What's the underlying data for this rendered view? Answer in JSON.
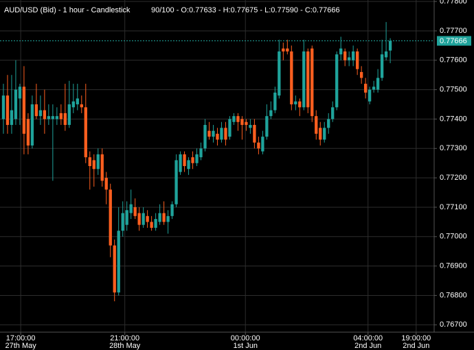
{
  "chart_data": {
    "type": "candlestick",
    "title": "AUD/USD (Bid) - 1 hour - Candlestick",
    "subtitle": "90/100 - O:0.77633 - H:0.77675 - L:0.77590 - C:0.77666",
    "up_color": "#1fa39b",
    "down_color": "#ff5f1f",
    "grid": true,
    "ylim": [
      0.76675,
      0.77805
    ],
    "yticks": [
      {
        "value": 0.778,
        "label": "0.77800"
      },
      {
        "value": 0.777,
        "label": "0.77700"
      },
      {
        "value": 0.776,
        "label": "0.77600"
      },
      {
        "value": 0.775,
        "label": "0.77500"
      },
      {
        "value": 0.774,
        "label": "0.77400"
      },
      {
        "value": 0.773,
        "label": "0.77300"
      },
      {
        "value": 0.772,
        "label": "0.77200"
      },
      {
        "value": 0.771,
        "label": "0.77100"
      },
      {
        "value": 0.77,
        "label": "0.77000"
      },
      {
        "value": 0.769,
        "label": "0.76900"
      },
      {
        "value": 0.768,
        "label": "0.76800"
      },
      {
        "value": 0.767,
        "label": "0.76700"
      }
    ],
    "xlim": [
      -0.83,
      104.67
    ],
    "xticks": [
      {
        "value": 4.2,
        "label": [
          "17:00:00",
          "27th May"
        ]
      },
      {
        "value": 29.5,
        "label": [
          "21:00:00",
          "28th May"
        ]
      },
      {
        "value": 58.8,
        "label": [
          "00:00:00",
          "1st Jun"
        ]
      },
      {
        "value": 88.6,
        "label": [
          "04:00:00",
          "2nd Jun"
        ]
      },
      {
        "value": 100.3,
        "label": [
          "19:00:00",
          "2nd Jun"
        ]
      }
    ],
    "last_price": 0.77666,
    "ohlc": [
      [
        0.774,
        0.7752,
        0.7735,
        0.7748
      ],
      [
        0.7748,
        0.7755,
        0.7735,
        0.7738
      ],
      [
        0.7738,
        0.7755,
        0.7735,
        0.7743
      ],
      [
        0.774,
        0.776,
        0.7738,
        0.775
      ],
      [
        0.7747,
        0.7752,
        0.7738,
        0.7751
      ],
      [
        0.7751,
        0.7758,
        0.7728,
        0.7735
      ],
      [
        0.774,
        0.7742,
        0.7728,
        0.7731
      ],
      [
        0.7731,
        0.7748,
        0.773,
        0.7745
      ],
      [
        0.7745,
        0.7752,
        0.774,
        0.7741
      ],
      [
        0.7741,
        0.7748,
        0.7738,
        0.7743
      ],
      [
        0.7743,
        0.775,
        0.7735,
        0.774
      ],
      [
        0.774,
        0.7745,
        0.7738,
        0.7741
      ],
      [
        0.774,
        0.7745,
        0.7719,
        0.7741
      ],
      [
        0.774,
        0.7744,
        0.7738,
        0.7741
      ],
      [
        0.7742,
        0.7745,
        0.7738,
        0.774
      ],
      [
        0.7742,
        0.7752,
        0.7736,
        0.7738
      ],
      [
        0.7738,
        0.7753,
        0.7737,
        0.7745
      ],
      [
        0.7744,
        0.7752,
        0.7742,
        0.7746
      ],
      [
        0.7745,
        0.7752,
        0.7743,
        0.7747
      ],
      [
        0.7745,
        0.7748,
        0.7742,
        0.7744
      ],
      [
        0.7744,
        0.7752,
        0.7725,
        0.7727
      ],
      [
        0.7727,
        0.7729,
        0.7716,
        0.7724
      ],
      [
        0.7726,
        0.7728,
        0.7717,
        0.7723
      ],
      [
        0.7723,
        0.773,
        0.7721,
        0.7728
      ],
      [
        0.7728,
        0.773,
        0.7717,
        0.7719
      ],
      [
        0.772,
        0.7722,
        0.7711,
        0.7716
      ],
      [
        0.7716,
        0.7718,
        0.7693,
        0.7697
      ],
      [
        0.7697,
        0.7699,
        0.7678,
        0.7681
      ],
      [
        0.7681,
        0.771,
        0.768,
        0.7702
      ],
      [
        0.7702,
        0.7712,
        0.77,
        0.7708
      ],
      [
        0.7704,
        0.7712,
        0.7702,
        0.7709
      ],
      [
        0.7708,
        0.7716,
        0.7706,
        0.7711
      ],
      [
        0.771,
        0.7713,
        0.7706,
        0.7707
      ],
      [
        0.7708,
        0.771,
        0.7702,
        0.7704
      ],
      [
        0.7704,
        0.771,
        0.7703,
        0.7708
      ],
      [
        0.7707,
        0.7709,
        0.7703,
        0.7705
      ],
      [
        0.7705,
        0.7707,
        0.7702,
        0.7703
      ],
      [
        0.7703,
        0.7708,
        0.7702,
        0.7706
      ],
      [
        0.7705,
        0.7711,
        0.7704,
        0.7708
      ],
      [
        0.7708,
        0.7712,
        0.7704,
        0.7705
      ],
      [
        0.7705,
        0.7709,
        0.7701,
        0.7707
      ],
      [
        0.7707,
        0.7712,
        0.7706,
        0.7711
      ],
      [
        0.7711,
        0.7728,
        0.771,
        0.7726
      ],
      [
        0.7722,
        0.7729,
        0.7721,
        0.7728
      ],
      [
        0.7728,
        0.7729,
        0.7722,
        0.7724
      ],
      [
        0.7723,
        0.7727,
        0.7721,
        0.7726
      ],
      [
        0.7727,
        0.7729,
        0.7723,
        0.7725
      ],
      [
        0.7725,
        0.773,
        0.7724,
        0.7728
      ],
      [
        0.7727,
        0.7732,
        0.7726,
        0.773
      ],
      [
        0.773,
        0.774,
        0.7729,
        0.7738
      ],
      [
        0.7736,
        0.7739,
        0.7733,
        0.7734
      ],
      [
        0.7734,
        0.7738,
        0.7732,
        0.7736
      ],
      [
        0.7735,
        0.7737,
        0.7731,
        0.7733
      ],
      [
        0.7733,
        0.7739,
        0.7732,
        0.7737
      ],
      [
        0.7737,
        0.7739,
        0.7731,
        0.7733
      ],
      [
        0.7734,
        0.7741,
        0.7733,
        0.774
      ],
      [
        0.7739,
        0.7742,
        0.7738,
        0.7741
      ],
      [
        0.7741,
        0.7742,
        0.7736,
        0.7739
      ],
      [
        0.774,
        0.7741,
        0.7733,
        0.7738
      ],
      [
        0.7739,
        0.774,
        0.7736,
        0.7738
      ],
      [
        0.7737,
        0.774,
        0.7735,
        0.7738
      ],
      [
        0.7738,
        0.774,
        0.773,
        0.7732
      ],
      [
        0.7732,
        0.7734,
        0.7728,
        0.773
      ],
      [
        0.7729,
        0.7736,
        0.7728,
        0.7734
      ],
      [
        0.7734,
        0.7745,
        0.7733,
        0.7741
      ],
      [
        0.7741,
        0.7746,
        0.774,
        0.7743
      ],
      [
        0.7743,
        0.7751,
        0.7742,
        0.7749
      ],
      [
        0.7748,
        0.7767,
        0.7747,
        0.7763
      ],
      [
        0.7764,
        0.7766,
        0.776,
        0.7763
      ],
      [
        0.7764,
        0.7767,
        0.7762,
        0.7763
      ],
      [
        0.7763,
        0.7765,
        0.7743,
        0.7745
      ],
      [
        0.7745,
        0.7748,
        0.7743,
        0.7746
      ],
      [
        0.7746,
        0.7747,
        0.7741,
        0.7744
      ],
      [
        0.7744,
        0.7767,
        0.7743,
        0.7763
      ],
      [
        0.7763,
        0.7764,
        0.7742,
        0.7744
      ],
      [
        0.7764,
        0.7765,
        0.7739,
        0.7741
      ],
      [
        0.7741,
        0.7743,
        0.7733,
        0.7735
      ],
      [
        0.7737,
        0.7739,
        0.7731,
        0.7733
      ],
      [
        0.7733,
        0.7739,
        0.7732,
        0.7737
      ],
      [
        0.7737,
        0.7742,
        0.7735,
        0.774
      ],
      [
        0.774,
        0.7746,
        0.7739,
        0.7744
      ],
      [
        0.7744,
        0.7763,
        0.7743,
        0.7762
      ],
      [
        0.7762,
        0.7768,
        0.776,
        0.7764
      ],
      [
        0.7763,
        0.7764,
        0.7758,
        0.776
      ],
      [
        0.776,
        0.7763,
        0.7758,
        0.7761
      ],
      [
        0.776,
        0.7765,
        0.7758,
        0.7763
      ],
      [
        0.7763,
        0.7764,
        0.7755,
        0.7757
      ],
      [
        0.7756,
        0.7758,
        0.7752,
        0.7754
      ],
      [
        0.7752,
        0.7754,
        0.7747,
        0.7749
      ],
      [
        0.7746,
        0.7751,
        0.7745,
        0.775
      ],
      [
        0.775,
        0.7753,
        0.7749,
        0.7751
      ],
      [
        0.775,
        0.7757,
        0.7749,
        0.7754
      ],
      [
        0.7754,
        0.7767,
        0.7753,
        0.7762
      ],
      [
        0.7761,
        0.7773,
        0.776,
        0.7763
      ],
      [
        0.77633,
        0.77675,
        0.7759,
        0.77666
      ]
    ]
  }
}
